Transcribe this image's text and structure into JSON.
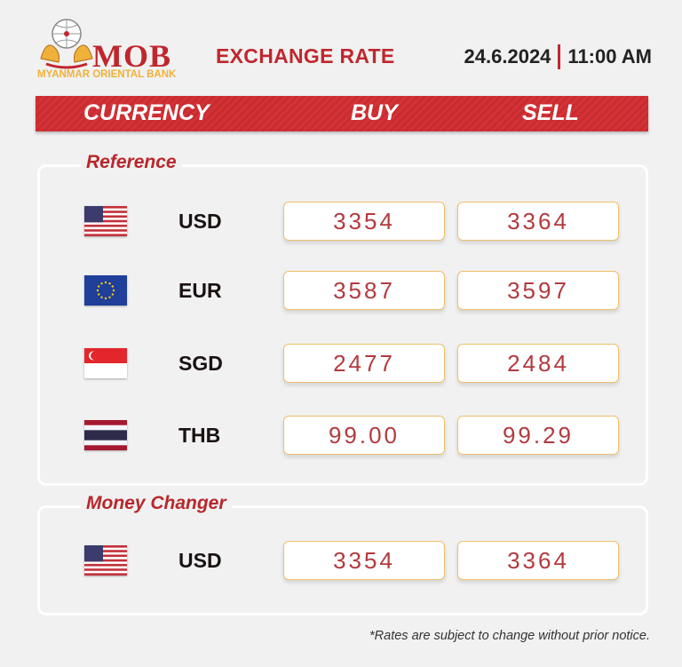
{
  "logo": {
    "name": "MOB",
    "bank_name": "MYANMAR ORIENTAL BANK"
  },
  "header": {
    "title": "EXCHANGE RATE",
    "date": "24.6.2024",
    "time": "11:00  AM"
  },
  "columns": {
    "currency": "CURRENCY",
    "buy": "BUY",
    "sell": "SELL"
  },
  "sections": [
    {
      "title": "Reference",
      "rows": [
        {
          "flag": "us-flag",
          "code": "USD",
          "buy": "3354",
          "sell": "3364"
        },
        {
          "flag": "eu-flag",
          "code": "EUR",
          "buy": "3587",
          "sell": "3597"
        },
        {
          "flag": "sg-flag",
          "code": "SGD",
          "buy": "2477",
          "sell": "2484"
        },
        {
          "flag": "th-flag",
          "code": "THB",
          "buy": "99.00",
          "sell": "99.29"
        }
      ]
    },
    {
      "title": "Money Changer",
      "rows": [
        {
          "flag": "us-flag",
          "code": "USD",
          "buy": "3354",
          "sell": "3364"
        }
      ]
    }
  ],
  "colors": {
    "brand_red": "#c0272d",
    "gold": "#f0b13a",
    "rate_border": "#efc06a"
  },
  "footnote": "*Rates are subject to change without prior notice."
}
